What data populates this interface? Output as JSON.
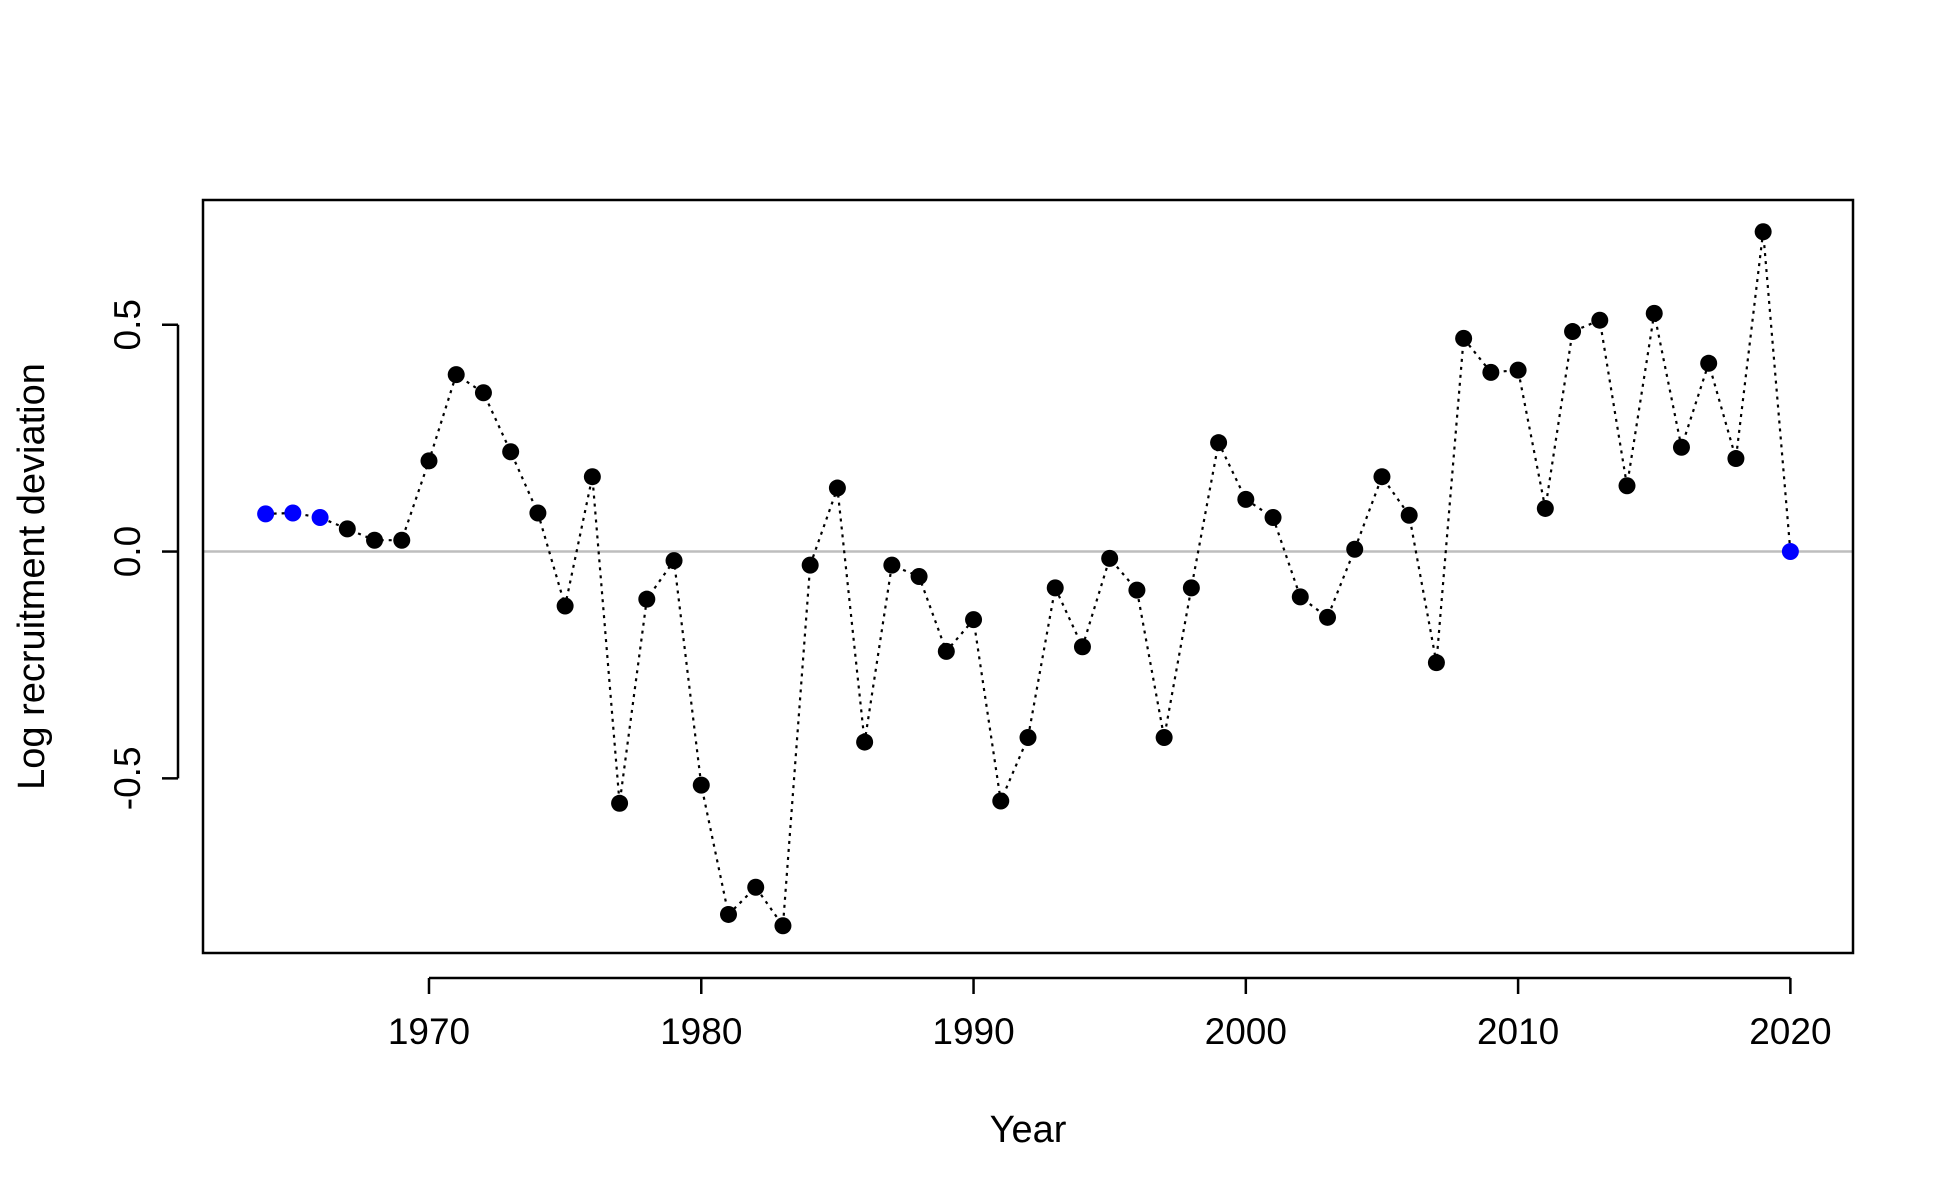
{
  "chart_data": {
    "type": "line",
    "title": "",
    "xlabel": "Year",
    "ylabel": "Log recruitment deviation",
    "xlim": [
      1961.7,
      2022.3
    ],
    "ylim": [
      -0.885,
      0.775
    ],
    "x_ticks": [
      1970,
      1980,
      1990,
      2000,
      2010,
      2020
    ],
    "y_ticks": [
      -0.5,
      0.0,
      0.5
    ],
    "y_tick_labels": [
      "-0.5",
      "0.0",
      "0.5"
    ],
    "reference_line": {
      "y": 0,
      "color": "#bebebe"
    },
    "grid": false,
    "line_style": "dotted",
    "colors": {
      "main": "#000000",
      "highlight": "#0000ff"
    },
    "series": [
      {
        "x": [
          1964,
          1965,
          1966,
          1967,
          1968,
          1969,
          1970,
          1971,
          1972,
          1973,
          1974,
          1975,
          1976,
          1977,
          1978,
          1979,
          1980,
          1981,
          1982,
          1983,
          1984,
          1985,
          1986,
          1987,
          1988,
          1989,
          1990,
          1991,
          1992,
          1993,
          1994,
          1995,
          1996,
          1997,
          1998,
          1999,
          2000,
          2001,
          2002,
          2003,
          2004,
          2005,
          2006,
          2007,
          2008,
          2009,
          2010,
          2011,
          2012,
          2013,
          2014,
          2015,
          2016,
          2017,
          2018,
          2019,
          2020
        ],
        "values": [
          0.083,
          0.085,
          0.075,
          0.05,
          0.025,
          0.025,
          0.2,
          0.39,
          0.35,
          0.22,
          0.085,
          -0.12,
          0.165,
          -0.555,
          -0.105,
          -0.02,
          -0.515,
          -0.8,
          -0.74,
          -0.825,
          -0.03,
          0.14,
          -0.42,
          -0.03,
          -0.055,
          -0.22,
          -0.15,
          -0.55,
          -0.41,
          -0.08,
          -0.21,
          -0.015,
          -0.085,
          -0.41,
          -0.08,
          0.24,
          0.115,
          0.075,
          -0.1,
          -0.145,
          0.005,
          0.165,
          0.08,
          -0.245,
          0.47,
          0.395,
          0.4,
          0.095,
          0.485,
          0.51,
          0.145,
          0.525,
          0.23,
          0.415,
          0.205,
          0.705,
          0.0
        ],
        "point_colors": [
          "blue",
          "blue",
          "blue",
          "black",
          "black",
          "black",
          "black",
          "black",
          "black",
          "black",
          "black",
          "black",
          "black",
          "black",
          "black",
          "black",
          "black",
          "black",
          "black",
          "black",
          "black",
          "black",
          "black",
          "black",
          "black",
          "black",
          "black",
          "black",
          "black",
          "black",
          "black",
          "black",
          "black",
          "black",
          "black",
          "black",
          "black",
          "black",
          "black",
          "black",
          "black",
          "black",
          "black",
          "black",
          "black",
          "black",
          "black",
          "black",
          "black",
          "black",
          "black",
          "black",
          "black",
          "black",
          "black",
          "black",
          "blue"
        ]
      }
    ]
  }
}
